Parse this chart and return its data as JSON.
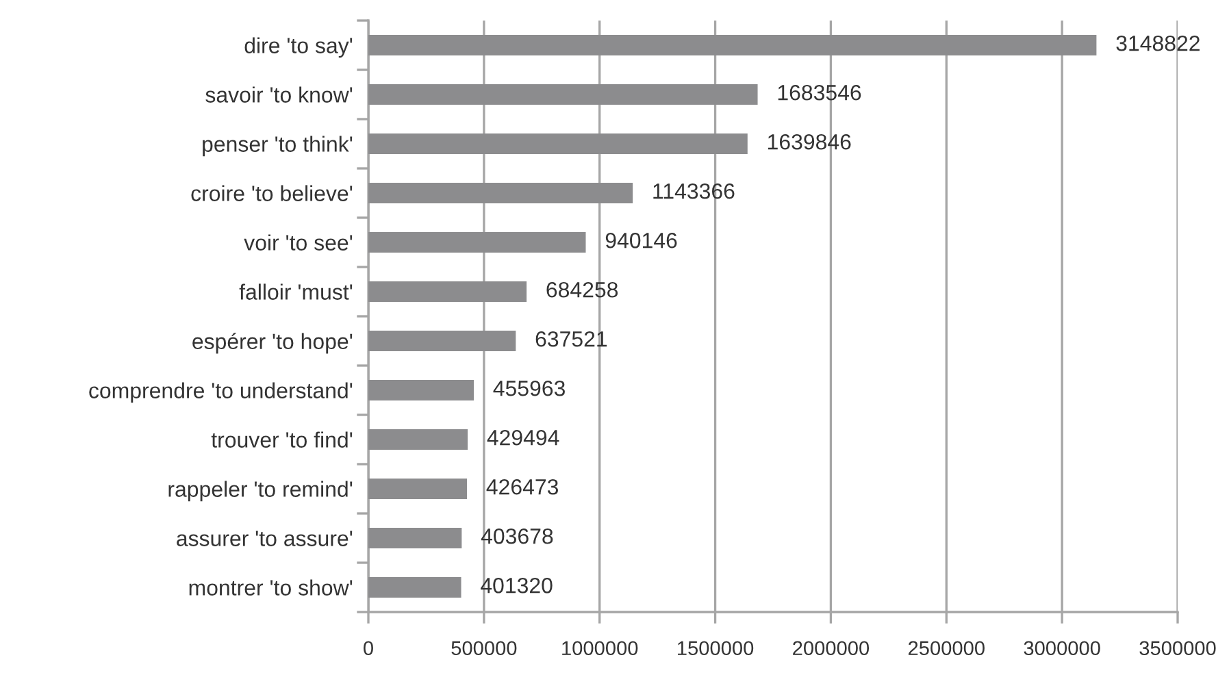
{
  "chart_data": {
    "type": "bar",
    "orientation": "horizontal",
    "categories": [
      "dire 'to say'",
      "savoir 'to know'",
      "penser 'to think'",
      "croire 'to believe'",
      "voir 'to see'",
      "falloir 'must'",
      "espérer 'to hope'",
      "comprendre 'to understand'",
      "trouver 'to find'",
      "rappeler 'to remind'",
      "assurer 'to assure'",
      "montrer 'to show'"
    ],
    "values": [
      3148822,
      1683546,
      1639846,
      1143366,
      940146,
      684258,
      637521,
      455963,
      429494,
      426473,
      403678,
      401320
    ],
    "color": "#8c8c8e",
    "data_labels": true,
    "xlim": [
      0,
      3500000
    ],
    "xticks": [
      0,
      500000,
      1000000,
      1500000,
      2000000,
      2500000,
      3000000,
      3500000
    ],
    "grid": "x",
    "legend": false
  }
}
